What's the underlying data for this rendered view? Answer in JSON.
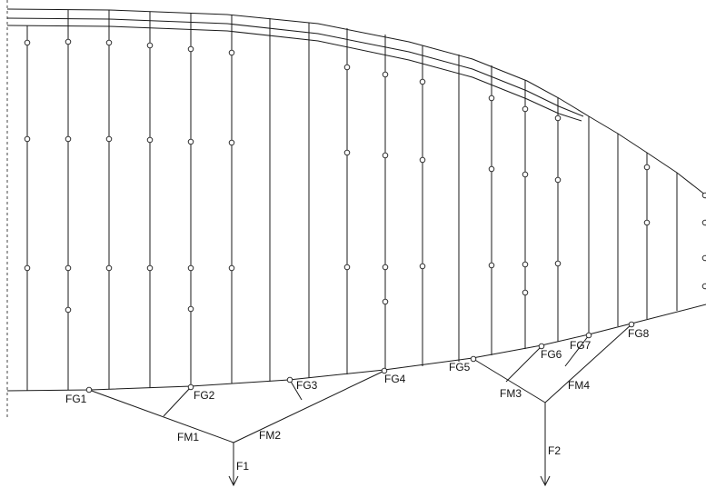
{
  "colors": {
    "background": "#ffffff",
    "line": "#1a1a1a",
    "axis": "#444444"
  },
  "labels": {
    "FG1": "FG1",
    "FG2": "FG2",
    "FG3": "FG3",
    "FG4": "FG4",
    "FG5": "FG5",
    "FG6": "FG6",
    "FG7": "FG7",
    "FG8": "FG8",
    "FM1": "FM1",
    "FM2": "FM2",
    "FM3": "FM3",
    "FM4": "FM4",
    "F1": "F1",
    "F2": "F2"
  }
}
